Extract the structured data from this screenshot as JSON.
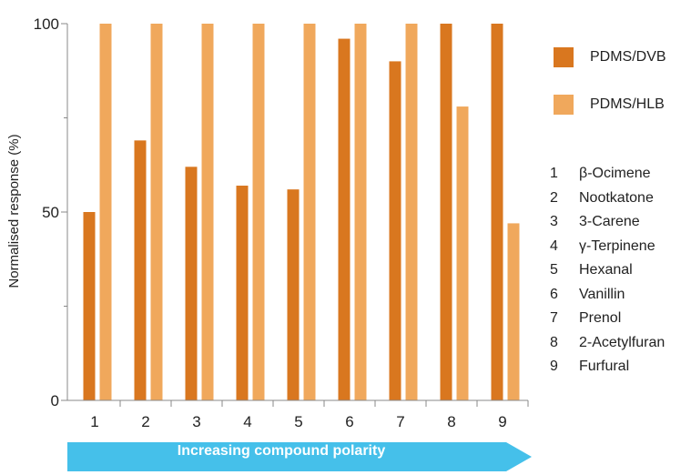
{
  "chart_data": {
    "type": "bar",
    "categories": [
      "1",
      "2",
      "3",
      "4",
      "5",
      "6",
      "7",
      "8",
      "9"
    ],
    "series": [
      {
        "name": "PDMS/DVB",
        "color": "#d9771f",
        "values": [
          50,
          69,
          62,
          57,
          56,
          96,
          90,
          100,
          100
        ]
      },
      {
        "name": "PDMS/HLB",
        "color": "#f0a85c",
        "values": [
          100,
          100,
          100,
          100,
          100,
          100,
          100,
          78,
          47
        ]
      }
    ],
    "ylabel": "Normalised response (%)",
    "yticks": [
      "0",
      "50",
      "100"
    ],
    "ylim": [
      0,
      100
    ],
    "grid": false,
    "legend_position": "right"
  },
  "compounds": [
    {
      "num": "1",
      "name": "β-Ocimene"
    },
    {
      "num": "2",
      "name": "Nootkatone"
    },
    {
      "num": "3",
      "name": "3-Carene"
    },
    {
      "num": "4",
      "name": "γ-Terpinene"
    },
    {
      "num": "5",
      "name": "Hexanal"
    },
    {
      "num": "6",
      "name": "Vanillin"
    },
    {
      "num": "7",
      "name": "Prenol"
    },
    {
      "num": "8",
      "name": "2-Acetylfuran"
    },
    {
      "num": "9",
      "name": "Furfural"
    }
  ],
  "polarity_arrow": {
    "label": "Increasing compound polarity",
    "color": "#45c0ea"
  }
}
